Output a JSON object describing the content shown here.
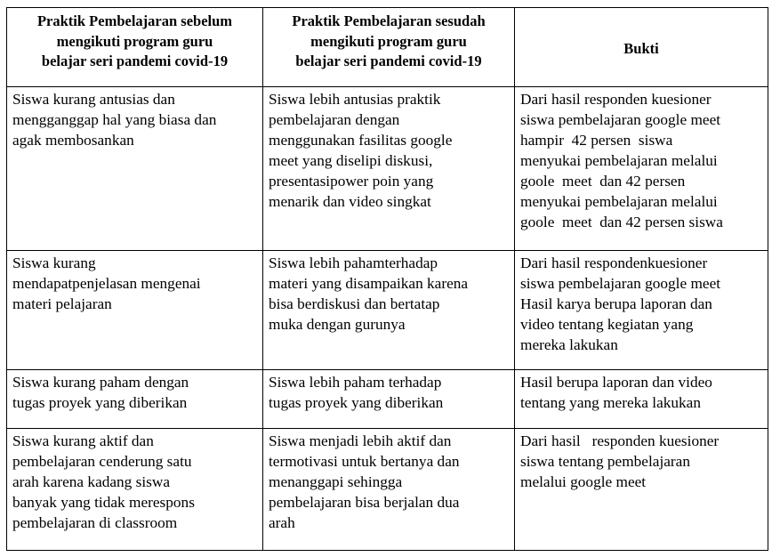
{
  "table": {
    "headers": [
      "Praktik Pembelajaran sebelum\nmengikuti program guru\nbelajar seri pandemi covid-19",
      "Praktik Pembelajaran sesudah\nmengikuti program guru\nbelajar seri pandemi covid-19",
      "Bukti"
    ],
    "rows": [
      [
        "Siswa kurang antusias dan\nmengganggap hal yang biasa dan\nagak membosankan",
        "Siswa lebih antusias praktik\npembelajaran dengan\nmenggunakan fasilitas google\nmeet yang diselipi diskusi,\npresentasipower poin yang\nmenarik dan video singkat",
        "Dari hasil responden kuesioner\nsiswa pembelajaran google meet\nhampir  42 persen  siswa\nmenyukai pembelajaran melalui\ngoole  meet  dan 42 persen\nmenyukai pembelajaran melalui\ngoole  meet  dan 42 persen siswa"
      ],
      [
        "Siswa kurang\nmendapatpenjelasan mengenai\nmateri pelajaran",
        "Siswa lebih pahamterhadap\nmateri yang disampaikan karena\nbisa berdiskusi dan bertatap\nmuka dengan gurunya",
        "Dari hasil respondenkuesioner\nsiswa pembelajaran google meet\nHasil karya berupa laporan dan\nvideo tentang kegiatan yang\nmereka lakukan"
      ],
      [
        "Siswa kurang paham dengan\ntugas proyek yang diberikan",
        "Siswa lebih paham terhadap\ntugas proyek yang diberikan",
        "Hasil berupa laporan dan video\ntentang yang mereka lakukan"
      ],
      [
        "Siswa kurang aktif dan\npembelajaran cenderung satu\narah karena kadang siswa\nbanyak yang tidak merespons\npembelajaran di classroom",
        "Siswa menjadi lebih aktif dan\ntermotivasi untuk bertanya dan\nmenanggapi sehingga\npembelajaran bisa berjalan dua\narah",
        "Dari hasil   responden kuesioner\nsiswa tentang pembelajaran\nmelalui google meet"
      ]
    ]
  }
}
